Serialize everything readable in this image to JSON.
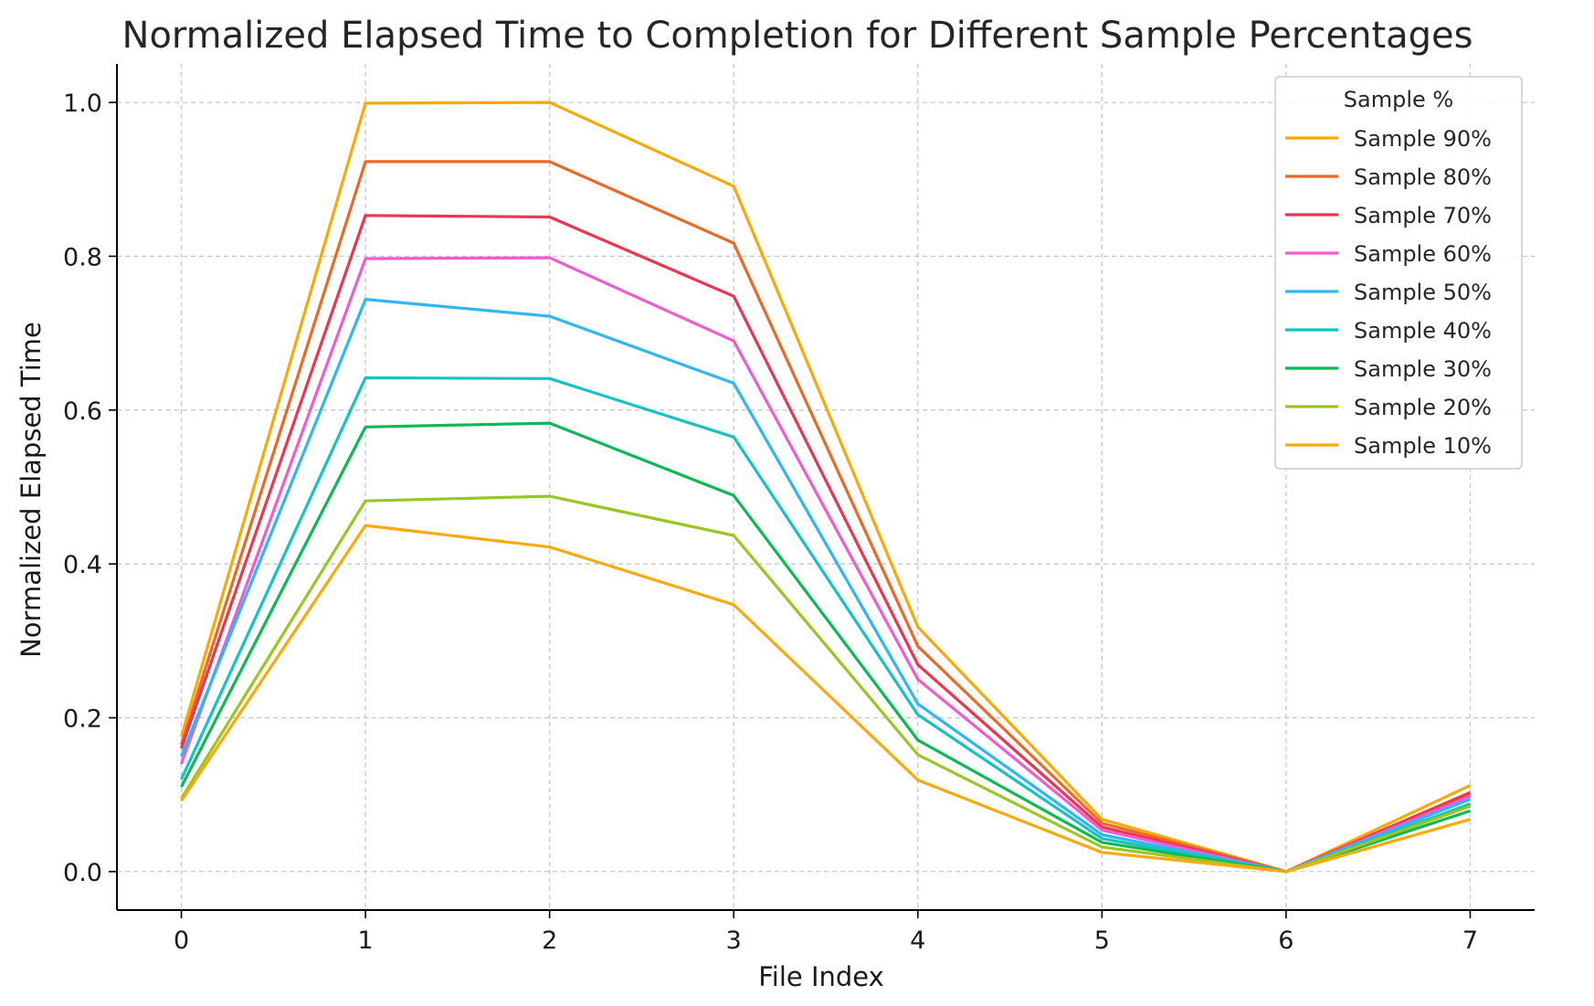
{
  "chart_data": {
    "type": "line",
    "title": "Normalized Elapsed Time to Completion for Different Sample Percentages",
    "xlabel": "File Index",
    "ylabel": "Normalized Elapsed Time",
    "x": [
      0,
      1,
      2,
      3,
      4,
      5,
      6,
      7
    ],
    "xlim": [
      -0.35,
      7.35
    ],
    "ylim": [
      -0.05,
      1.05
    ],
    "xticks": [
      "0",
      "1",
      "2",
      "3",
      "4",
      "5",
      "6",
      "7"
    ],
    "yticks": [
      "0.0",
      "0.2",
      "0.4",
      "0.6",
      "0.8",
      "1.0"
    ],
    "grid": true,
    "legend_title": "Sample %",
    "legend_position": "top-right",
    "series": [
      {
        "name": "Sample 90%",
        "color": "#F9A906",
        "values": [
          0.175,
          0.999,
          1.0,
          0.891,
          0.318,
          0.068,
          0.0,
          0.112
        ]
      },
      {
        "name": "Sample 80%",
        "color": "#EC6925",
        "values": [
          0.165,
          0.923,
          0.923,
          0.817,
          0.293,
          0.063,
          0.0,
          0.103
        ]
      },
      {
        "name": "Sample 70%",
        "color": "#EC3551",
        "values": [
          0.16,
          0.853,
          0.851,
          0.748,
          0.269,
          0.058,
          0.0,
          0.102
        ]
      },
      {
        "name": "Sample 60%",
        "color": "#F25BCE",
        "values": [
          0.14,
          0.797,
          0.798,
          0.69,
          0.25,
          0.054,
          0.0,
          0.098
        ]
      },
      {
        "name": "Sample 50%",
        "color": "#2FB6F3",
        "values": [
          0.15,
          0.744,
          0.722,
          0.635,
          0.218,
          0.048,
          0.0,
          0.094
        ]
      },
      {
        "name": "Sample 40%",
        "color": "#16C2C2",
        "values": [
          0.12,
          0.642,
          0.641,
          0.565,
          0.204,
          0.043,
          0.0,
          0.088
        ]
      },
      {
        "name": "Sample 30%",
        "color": "#0CB955",
        "values": [
          0.11,
          0.578,
          0.583,
          0.489,
          0.171,
          0.038,
          0.0,
          0.079
        ]
      },
      {
        "name": "Sample 20%",
        "color": "#9AC623",
        "values": [
          0.095,
          0.482,
          0.488,
          0.437,
          0.152,
          0.032,
          0.0,
          0.085
        ]
      },
      {
        "name": "Sample 10%",
        "color": "#FAAA0B",
        "values": [
          0.092,
          0.45,
          0.422,
          0.347,
          0.119,
          0.025,
          0.0,
          0.068
        ]
      }
    ]
  }
}
